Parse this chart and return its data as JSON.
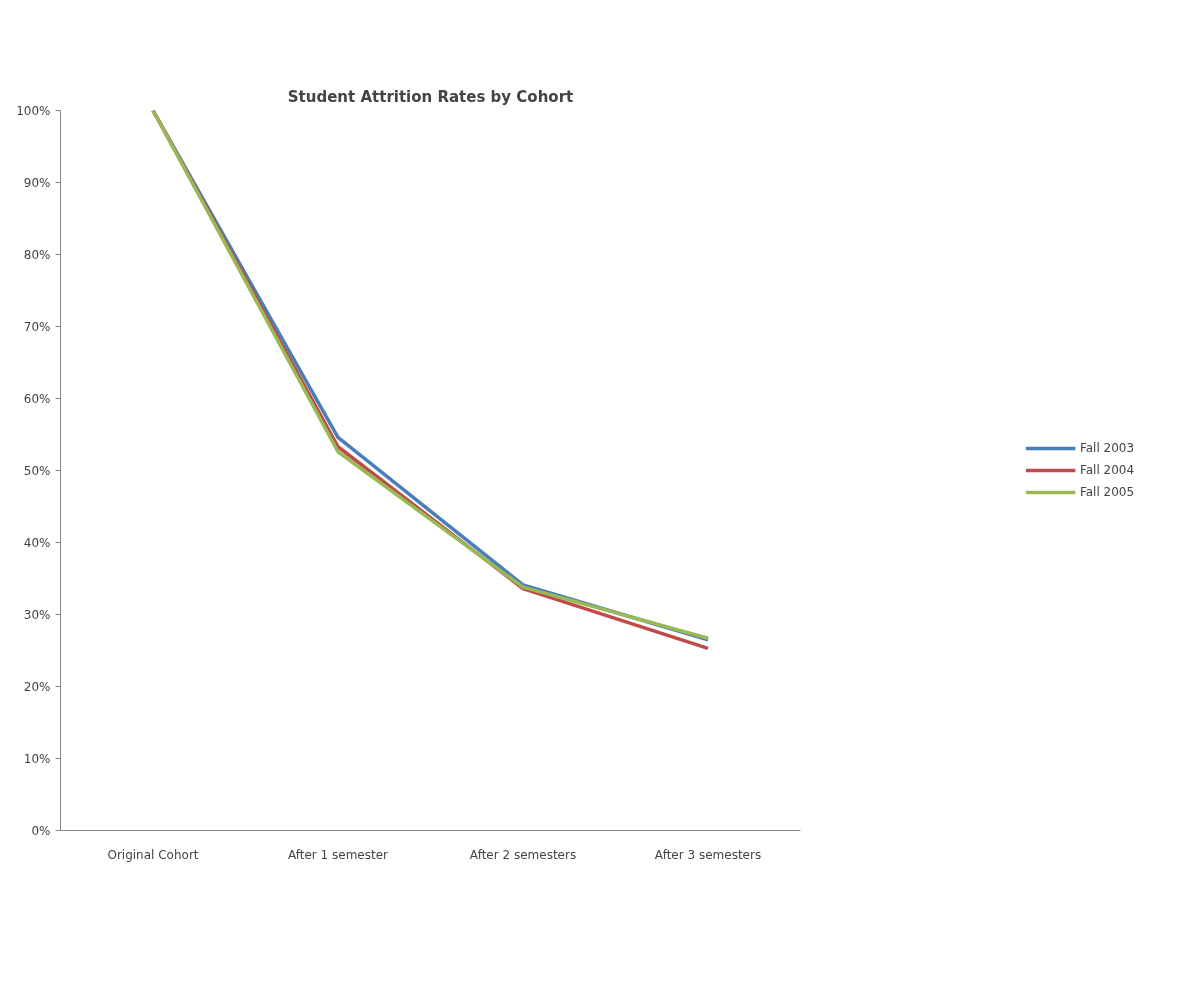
{
  "chart_data": {
    "type": "line",
    "title": "Student Attrition Rates by Cohort",
    "categories": [
      "Original Cohort",
      "After 1 semester",
      "After 2 semesters",
      "After 3 semesters"
    ],
    "series": [
      {
        "name": "Fall 2003",
        "color": "#4a7ebb",
        "values": [
          100,
          54.6,
          34.1,
          26.5
        ]
      },
      {
        "name": "Fall 2004",
        "color": "#be4b48",
        "values": [
          100,
          53.3,
          33.6,
          25.3
        ]
      },
      {
        "name": "Fall 2005",
        "color": "#98b954",
        "values": [
          100,
          52.6,
          33.8,
          26.7
        ]
      }
    ],
    "ylim": [
      0,
      100
    ],
    "yticks": [
      {
        "value": 0,
        "label": "0%"
      },
      {
        "value": 10,
        "label": "10%"
      },
      {
        "value": 20,
        "label": "20%"
      },
      {
        "value": 30,
        "label": "30%"
      },
      {
        "value": 40,
        "label": "40%"
      },
      {
        "value": 50,
        "label": "50%"
      },
      {
        "value": 60,
        "label": "60%"
      },
      {
        "value": 70,
        "label": "70%"
      },
      {
        "value": 80,
        "label": "80%"
      },
      {
        "value": 90,
        "label": "90%"
      },
      {
        "value": 100,
        "label": "100%"
      }
    ],
    "grid": false,
    "legend": "right",
    "marker": "none",
    "line_style": "solid"
  }
}
